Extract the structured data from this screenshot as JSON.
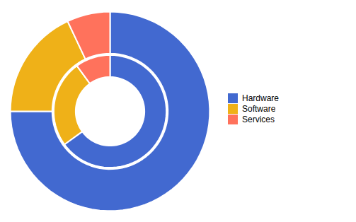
{
  "chart_data": {
    "type": "pie",
    "categories": [
      "Hardware",
      "Software",
      "Services"
    ],
    "series": [
      {
        "values": [
          75,
          18,
          7
        ]
      },
      {
        "values": [
          65,
          25,
          10
        ]
      }
    ],
    "legend": "right"
  }
}
